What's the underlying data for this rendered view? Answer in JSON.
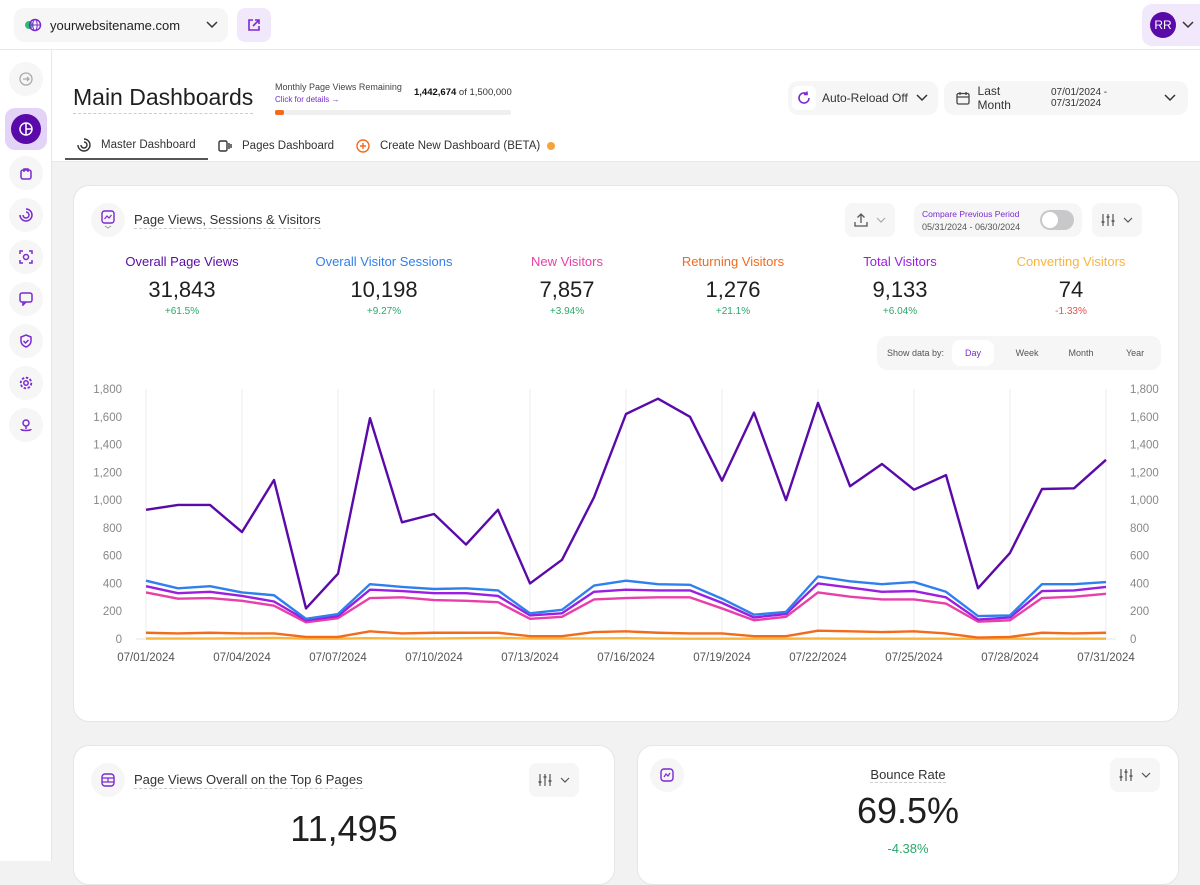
{
  "topbar": {
    "site": "yourwebsitename.com",
    "user_initials": "RR"
  },
  "sidebar": {
    "items": [
      "collapse",
      "dashboards",
      "ecommerce",
      "funnels",
      "heatmaps",
      "feedback",
      "privacy",
      "settings",
      "locations"
    ],
    "active": "dashboards"
  },
  "header": {
    "title": "Main Dashboards",
    "quota": {
      "label": "Monthly Page Views Remaining",
      "link": "Click for details →",
      "used_value": "1,442,674",
      "total_text": "of 1,500,000",
      "fill_percent": 3.8,
      "color": "#f26b1d"
    },
    "auto_reload": "Auto-Reload Off",
    "date_preset": "Last Month",
    "date_range": "07/01/2024 - 07/31/2024",
    "tabs": [
      {
        "label": "Master Dashboard",
        "active": true
      },
      {
        "label": "Pages Dashboard"
      },
      {
        "label": "Create New Dashboard (BETA)"
      }
    ]
  },
  "main_card": {
    "title": "Page Views, Sessions & Visitors",
    "compare": {
      "label": "Compare Previous Period",
      "range": "05/31/2024 - 06/30/2024",
      "enabled": false
    },
    "stats": [
      {
        "label": "Overall Page Views",
        "value": "31,843",
        "change": "+61.5%",
        "color": "#5a0aa8"
      },
      {
        "label": "Overall Visitor Sessions",
        "value": "10,198",
        "change": "+9.27%",
        "color": "#2f80ed"
      },
      {
        "label": "New Visitors",
        "value": "7,857",
        "change": "+3.94%",
        "color": "#e83fa8"
      },
      {
        "label": "Returning Visitors",
        "value": "1,276",
        "change": "+21.1%",
        "color": "#f26b1d"
      },
      {
        "label": "Total Visitors",
        "value": "9,133",
        "change": "+6.04%",
        "color": "#9b1fe0"
      },
      {
        "label": "Converting Visitors",
        "value": "74",
        "change": "-1.33%",
        "color": "#f8b53c"
      }
    ],
    "show_by": {
      "label": "Show data by:",
      "options": [
        "Day",
        "Week",
        "Month",
        "Year"
      ],
      "selected": "Day"
    }
  },
  "chart_data": {
    "type": "line",
    "x": [
      "07/01/2024",
      "07/02/2024",
      "07/03/2024",
      "07/04/2024",
      "07/05/2024",
      "07/06/2024",
      "07/07/2024",
      "07/08/2024",
      "07/09/2024",
      "07/10/2024",
      "07/11/2024",
      "07/12/2024",
      "07/13/2024",
      "07/14/2024",
      "07/15/2024",
      "07/16/2024",
      "07/17/2024",
      "07/18/2024",
      "07/19/2024",
      "07/20/2024",
      "07/21/2024",
      "07/22/2024",
      "07/23/2024",
      "07/24/2024",
      "07/25/2024",
      "07/26/2024",
      "07/27/2024",
      "07/28/2024",
      "07/29/2024",
      "07/30/2024",
      "07/31/2024"
    ],
    "x_ticks": [
      "07/01/2024",
      "07/04/2024",
      "07/07/2024",
      "07/10/2024",
      "07/13/2024",
      "07/16/2024",
      "07/19/2024",
      "07/22/2024",
      "07/25/2024",
      "07/28/2024",
      "07/31/2024"
    ],
    "y_ticks": [
      "0",
      "200",
      "400",
      "600",
      "800",
      "1,000",
      "1,200",
      "1,400",
      "1,600",
      "1,800"
    ],
    "ylim": [
      0,
      1800
    ],
    "grid": "vertical",
    "series": [
      {
        "name": "Overall Page Views",
        "color": "#5a0aa8",
        "values": [
          930,
          965,
          965,
          770,
          1145,
          220,
          470,
          1590,
          840,
          900,
          680,
          930,
          400,
          570,
          1020,
          1620,
          1730,
          1600,
          1140,
          1630,
          1000,
          1700,
          1100,
          1260,
          1075,
          1180,
          365,
          620,
          1080,
          1085,
          1290
        ]
      },
      {
        "name": "Overall Visitor Sessions",
        "color": "#2f80ed",
        "values": [
          420,
          365,
          380,
          335,
          315,
          145,
          180,
          395,
          375,
          360,
          365,
          350,
          185,
          210,
          385,
          420,
          395,
          390,
          290,
          175,
          195,
          450,
          415,
          395,
          410,
          340,
          165,
          170,
          395,
          395,
          410
        ]
      },
      {
        "name": "Total Visitors",
        "color": "#9b1fe0",
        "values": [
          380,
          330,
          340,
          310,
          270,
          135,
          165,
          355,
          345,
          330,
          330,
          310,
          170,
          185,
          340,
          355,
          350,
          350,
          260,
          155,
          180,
          400,
          370,
          340,
          345,
          300,
          140,
          155,
          345,
          350,
          375
        ]
      },
      {
        "name": "New Visitors",
        "color": "#e83fa8",
        "values": [
          335,
          290,
          295,
          275,
          240,
          120,
          150,
          295,
          300,
          280,
          275,
          265,
          145,
          160,
          285,
          295,
          300,
          300,
          220,
          135,
          160,
          335,
          305,
          285,
          285,
          255,
          125,
          135,
          295,
          305,
          325
        ]
      },
      {
        "name": "Returning Visitors",
        "color": "#f26b1d",
        "values": [
          45,
          40,
          45,
          40,
          40,
          15,
          15,
          55,
          40,
          45,
          45,
          45,
          20,
          20,
          50,
          55,
          45,
          40,
          40,
          20,
          20,
          60,
          55,
          50,
          55,
          40,
          10,
          15,
          45,
          40,
          45
        ]
      },
      {
        "name": "Converting Visitors",
        "color": "#f8b53c",
        "values": [
          3,
          3,
          3,
          5,
          8,
          2,
          2,
          6,
          3,
          3,
          6,
          8,
          3,
          3,
          4,
          6,
          3,
          2,
          2,
          2,
          2,
          3,
          2,
          2,
          2,
          2,
          1,
          2,
          2,
          2,
          2
        ]
      }
    ]
  },
  "top_pages_card": {
    "title": "Page Views Overall on the Top 6 Pages",
    "value": "11,495"
  },
  "bounce_card": {
    "title": "Bounce Rate",
    "value": "69.5%",
    "change": "-4.38%"
  }
}
